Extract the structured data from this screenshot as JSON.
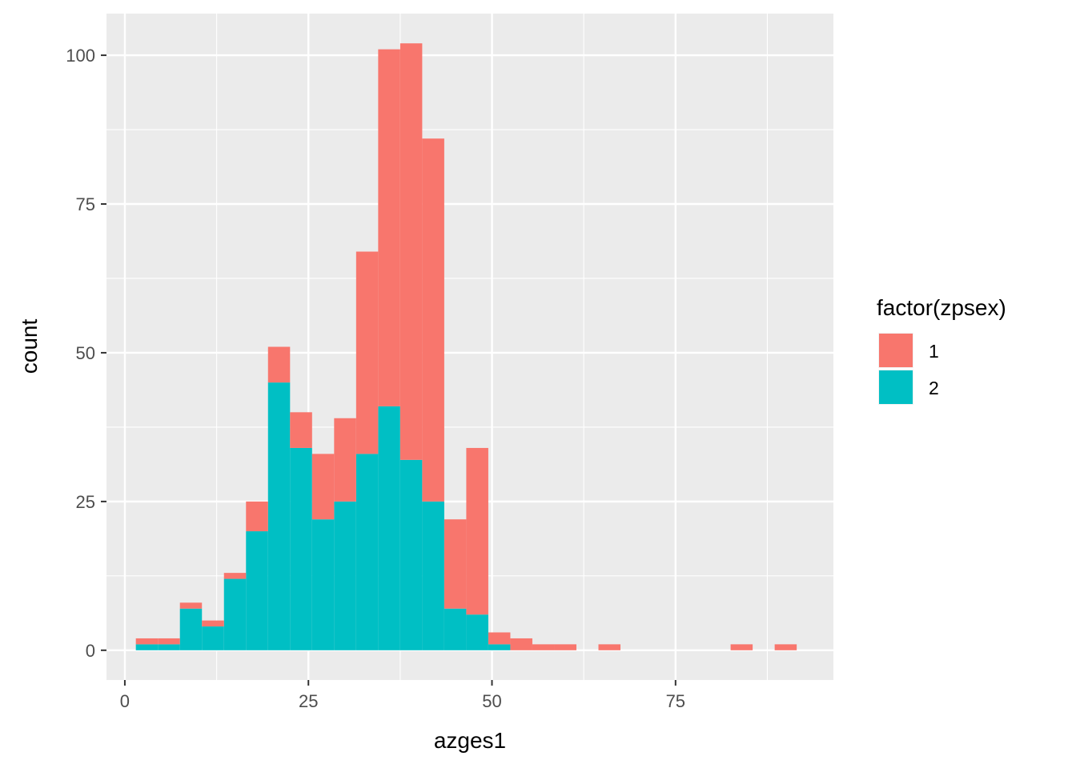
{
  "chart_data": {
    "type": "bar",
    "subtype": "stacked histogram",
    "xlabel": "azges1",
    "ylabel": "count",
    "x_ticks": [
      0,
      25,
      50,
      75
    ],
    "y_ticks": [
      0,
      25,
      50,
      75,
      100
    ],
    "xlim": [
      -2.5,
      96.5
    ],
    "ylim": [
      -5,
      107
    ],
    "bin_width": 3,
    "grid": true,
    "legend": {
      "title": "factor(zpsex)",
      "position": "right"
    },
    "series": [
      {
        "name": "1",
        "color": "#F8766D",
        "bins": [
          {
            "x0": 1.5,
            "x1": 4.5,
            "count": 1
          },
          {
            "x0": 4.5,
            "x1": 7.5,
            "count": 1
          },
          {
            "x0": 7.5,
            "x1": 10.5,
            "count": 1
          },
          {
            "x0": 10.5,
            "x1": 13.5,
            "count": 1
          },
          {
            "x0": 13.5,
            "x1": 16.5,
            "count": 1
          },
          {
            "x0": 16.5,
            "x1": 19.5,
            "count": 5
          },
          {
            "x0": 19.5,
            "x1": 22.5,
            "count": 6
          },
          {
            "x0": 22.5,
            "x1": 25.5,
            "count": 6
          },
          {
            "x0": 25.5,
            "x1": 28.5,
            "count": 11
          },
          {
            "x0": 28.5,
            "x1": 31.5,
            "count": 14
          },
          {
            "x0": 31.5,
            "x1": 34.5,
            "count": 34
          },
          {
            "x0": 34.5,
            "x1": 37.5,
            "count": 60
          },
          {
            "x0": 37.5,
            "x1": 40.5,
            "count": 70
          },
          {
            "x0": 40.5,
            "x1": 43.5,
            "count": 61
          },
          {
            "x0": 43.5,
            "x1": 46.5,
            "count": 15
          },
          {
            "x0": 46.5,
            "x1": 49.5,
            "count": 28
          },
          {
            "x0": 49.5,
            "x1": 52.5,
            "count": 2
          },
          {
            "x0": 52.5,
            "x1": 55.5,
            "count": 2
          },
          {
            "x0": 55.5,
            "x1": 58.5,
            "count": 1
          },
          {
            "x0": 58.5,
            "x1": 61.5,
            "count": 1
          },
          {
            "x0": 64.5,
            "x1": 67.5,
            "count": 1
          },
          {
            "x0": 82.5,
            "x1": 85.5,
            "count": 1
          },
          {
            "x0": 88.5,
            "x1": 91.5,
            "count": 1
          }
        ]
      },
      {
        "name": "2",
        "color": "#00BFC4",
        "bins": [
          {
            "x0": 1.5,
            "x1": 4.5,
            "count": 1
          },
          {
            "x0": 4.5,
            "x1": 7.5,
            "count": 1
          },
          {
            "x0": 7.5,
            "x1": 10.5,
            "count": 7
          },
          {
            "x0": 10.5,
            "x1": 13.5,
            "count": 4
          },
          {
            "x0": 13.5,
            "x1": 16.5,
            "count": 12
          },
          {
            "x0": 16.5,
            "x1": 19.5,
            "count": 20
          },
          {
            "x0": 19.5,
            "x1": 22.5,
            "count": 45
          },
          {
            "x0": 22.5,
            "x1": 25.5,
            "count": 34
          },
          {
            "x0": 25.5,
            "x1": 28.5,
            "count": 22
          },
          {
            "x0": 28.5,
            "x1": 31.5,
            "count": 25
          },
          {
            "x0": 31.5,
            "x1": 34.5,
            "count": 33
          },
          {
            "x0": 34.5,
            "x1": 37.5,
            "count": 41
          },
          {
            "x0": 37.5,
            "x1": 40.5,
            "count": 32
          },
          {
            "x0": 40.5,
            "x1": 43.5,
            "count": 25
          },
          {
            "x0": 43.5,
            "x1": 46.5,
            "count": 7
          },
          {
            "x0": 46.5,
            "x1": 49.5,
            "count": 6
          },
          {
            "x0": 49.5,
            "x1": 52.5,
            "count": 1
          }
        ]
      }
    ]
  }
}
